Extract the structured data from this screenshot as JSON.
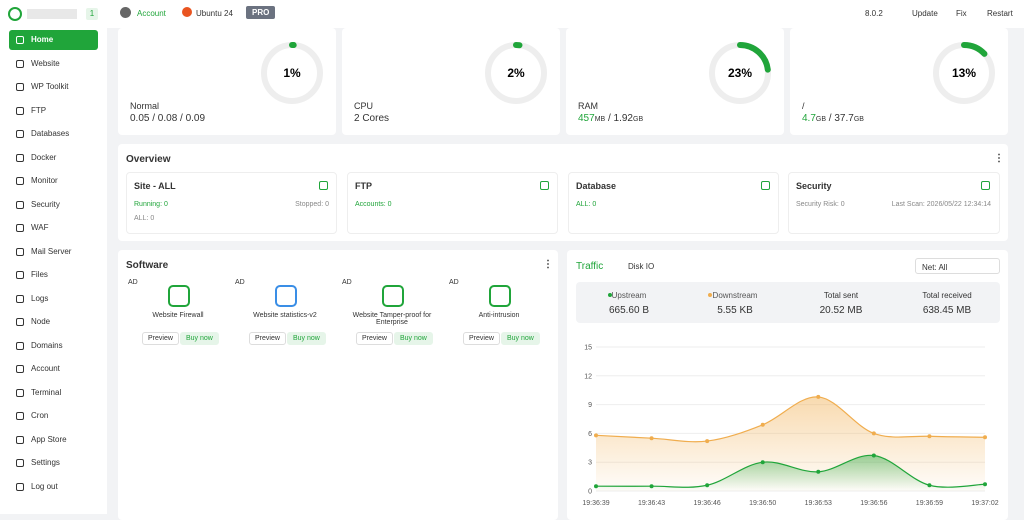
{
  "sidebar": {
    "badge": "1",
    "menu": [
      "Home",
      "Website",
      "WP Toolkit",
      "FTP",
      "Databases",
      "Docker",
      "Monitor",
      "Security",
      "WAF",
      "Mail Server",
      "Files",
      "Logs",
      "Node",
      "Domains",
      "Account",
      "Terminal",
      "Cron",
      "App Store",
      "Settings",
      "Log out"
    ]
  },
  "topbar": {
    "account": "Account",
    "os": "Ubuntu 24",
    "pro": "PRO",
    "version": "8.0.2",
    "actions": [
      "Update",
      "Fix",
      "Restart"
    ]
  },
  "stats": [
    {
      "value": 1,
      "value_label": "1%",
      "label": "Normal",
      "detail": "0.05 / 0.08 / 0.09"
    },
    {
      "value": 2,
      "value_label": "2%",
      "label": "CPU",
      "detail": "2 Cores"
    },
    {
      "value": 23,
      "value_label": "23%",
      "label": "RAM",
      "used": "457",
      "used_unit": "MB",
      "total": " / 1.92",
      "total_unit": "GB"
    },
    {
      "value": 13,
      "value_label": "13%",
      "label": "/",
      "used": "4.7",
      "used_unit": "GB",
      "total": " / 37.7",
      "total_unit": "GB"
    }
  ],
  "overview": {
    "title": "Overview",
    "cards": [
      {
        "title": "Site - ALL",
        "lines": [
          [
            "Running: 0",
            "Stopped: 0"
          ],
          [
            "ALL: 0"
          ]
        ]
      },
      {
        "title": "FTP",
        "lines": [
          [
            "Accounts: 0"
          ]
        ]
      },
      {
        "title": "Database",
        "lines": [
          [
            "ALL: 0"
          ]
        ]
      },
      {
        "title": "Security",
        "lines": [
          [
            "Security Risk: 0",
            "Last Scan: 2026/05/22 12:34:14"
          ]
        ]
      }
    ]
  },
  "software": {
    "title": "Software",
    "items": [
      {
        "ad": "AD",
        "name": "Website Firewall",
        "preview": "Preview",
        "buy": "Buy now"
      },
      {
        "ad": "AD",
        "name": "Website statistics-v2",
        "preview": "Preview",
        "buy": "Buy now"
      },
      {
        "ad": "AD",
        "name": "Website Tamper-proof for Enterprise",
        "preview": "Preview",
        "buy": "Buy now"
      },
      {
        "ad": "AD",
        "name": "Anti-intrusion",
        "preview": "Preview",
        "buy": "Buy now"
      }
    ]
  },
  "traffic": {
    "title": "Traffic",
    "tab": "Disk IO",
    "select": "Net: All",
    "summary": [
      {
        "label": "Upstream",
        "value": "665.60 B"
      },
      {
        "label": "Downstream",
        "value": "5.55 KB"
      },
      {
        "label": "Total sent",
        "value": "20.52 MB"
      },
      {
        "label": "Total received",
        "value": "638.45 MB"
      }
    ]
  },
  "chart_data": {
    "type": "line",
    "categories": [
      "19:36:39",
      "19:36:43",
      "19:36:46",
      "19:36:50",
      "19:36:53",
      "19:36:56",
      "19:36:59",
      "19:37:02"
    ],
    "series": [
      {
        "name": "Upstream",
        "color": "#20a53a",
        "values": [
          0.5,
          0.5,
          0.6,
          3,
          2,
          3.7,
          0.6,
          0.7
        ]
      },
      {
        "name": "Downstream",
        "color": "#f0ad4e",
        "values": [
          5.8,
          5.5,
          5.2,
          6.9,
          9.8,
          6,
          5.7,
          5.6
        ]
      }
    ],
    "ylim": [
      0,
      15
    ],
    "yticks": [
      0,
      3,
      6,
      9,
      12,
      15
    ],
    "grid": true
  }
}
